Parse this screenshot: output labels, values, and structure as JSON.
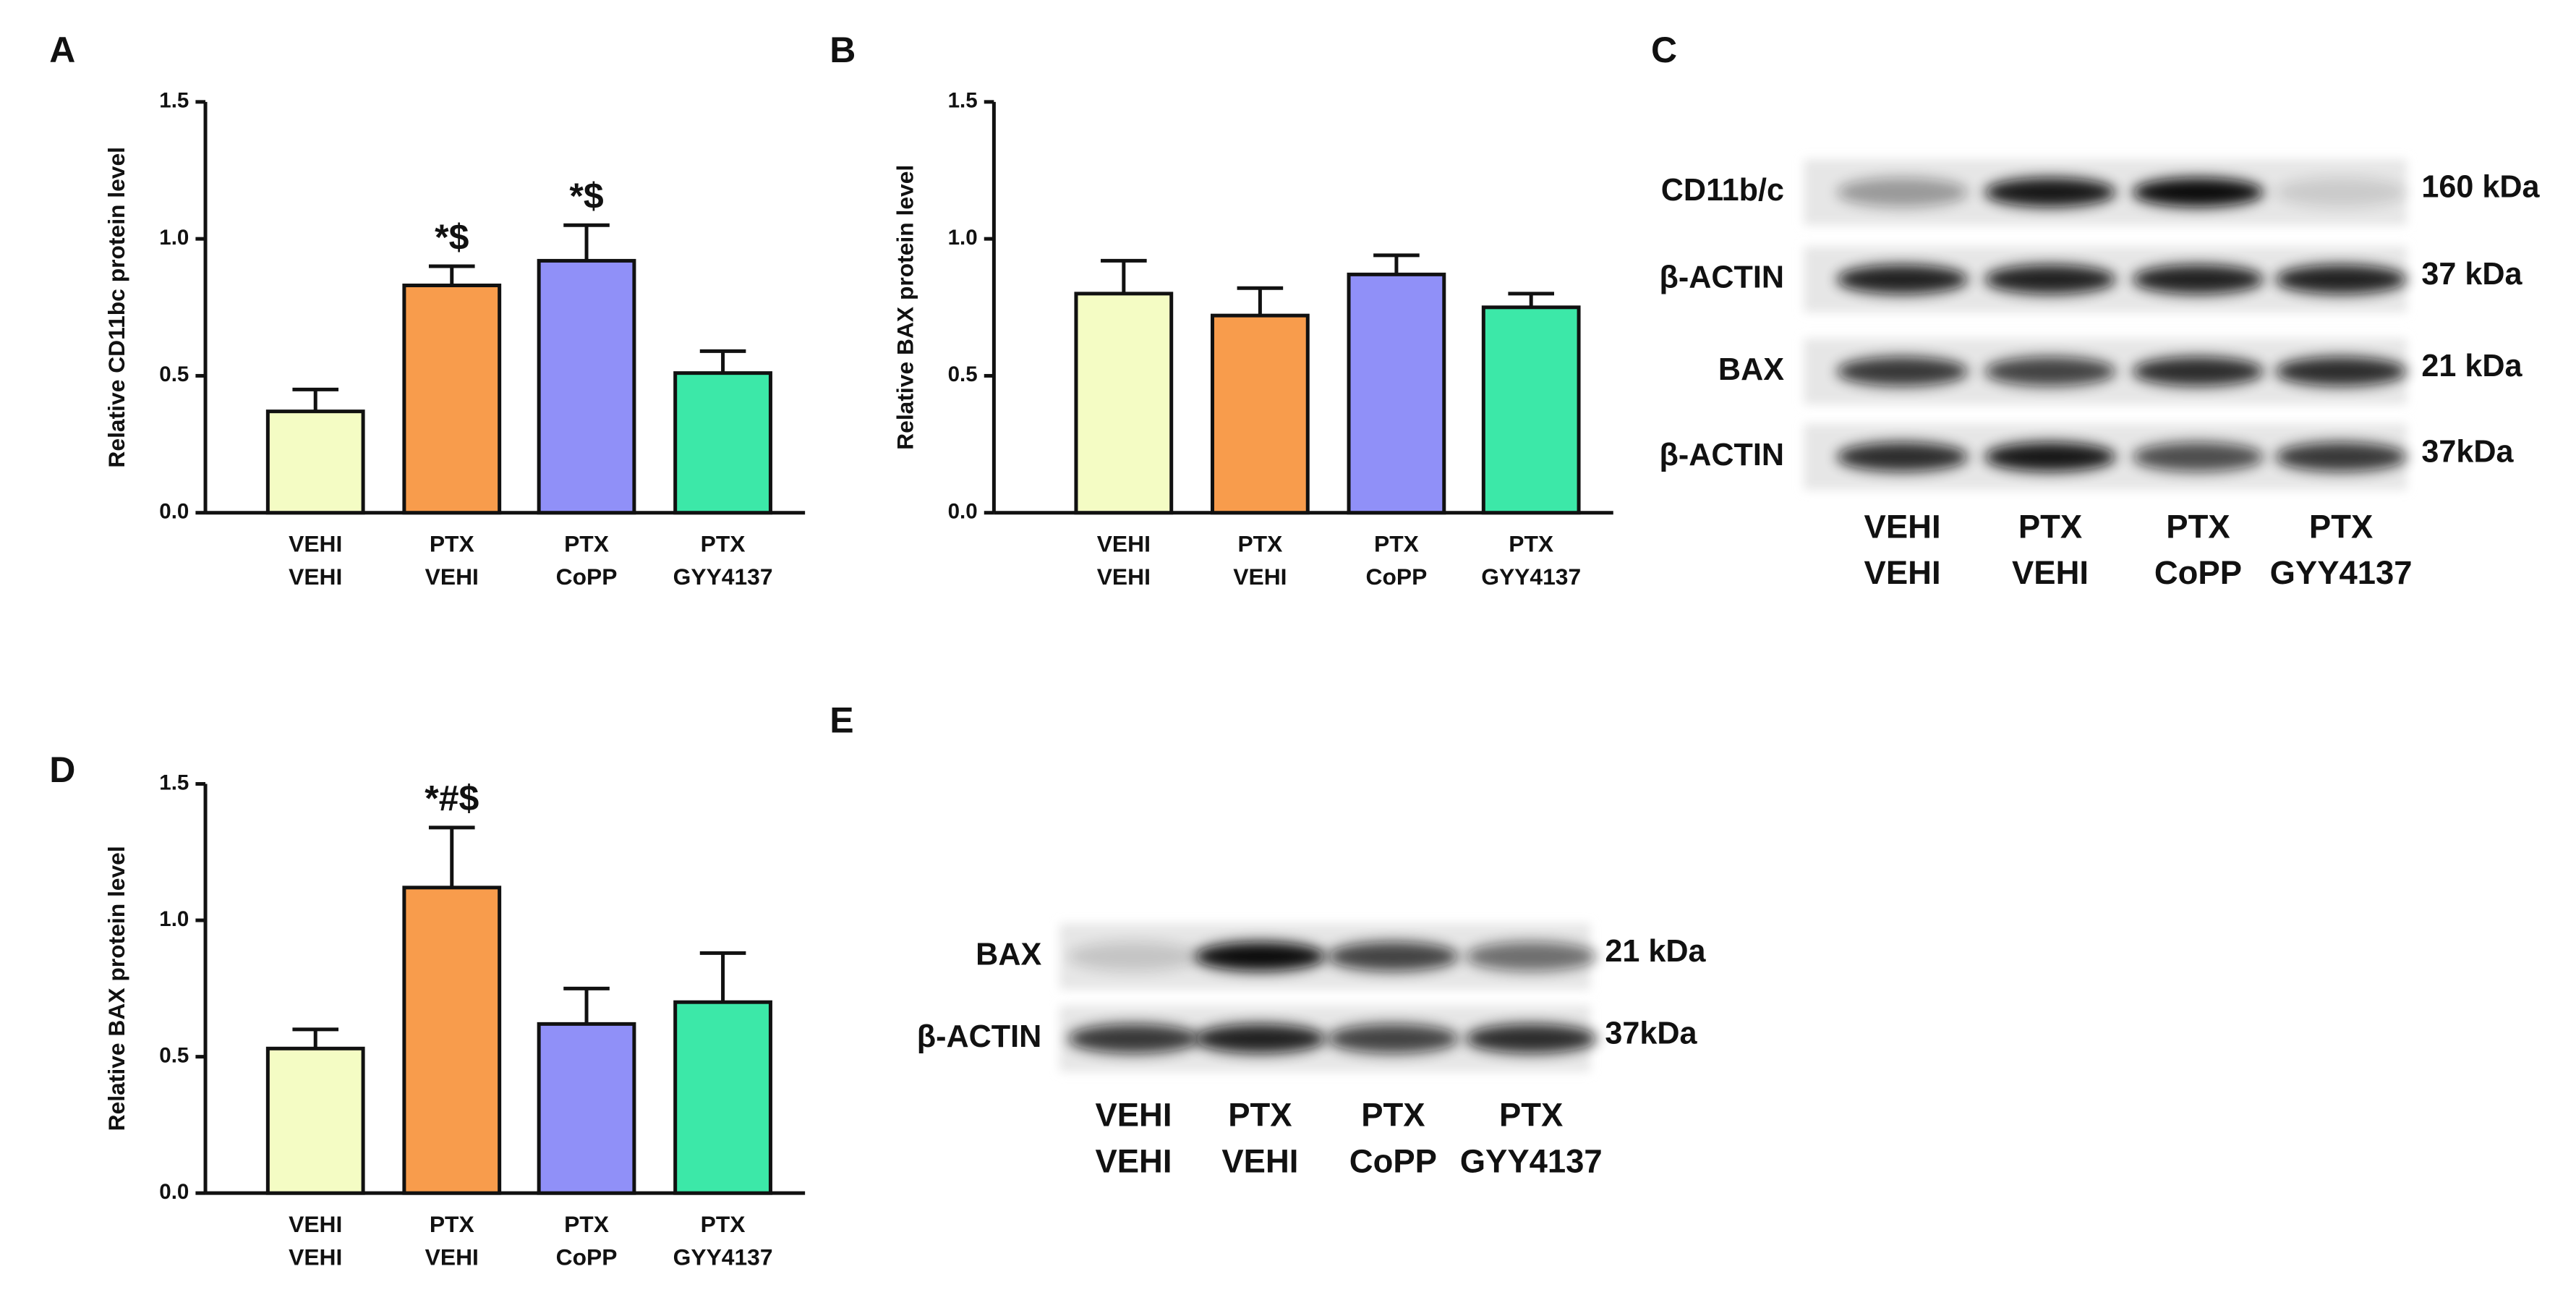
{
  "chart_data": [
    {
      "type": "bar",
      "panel": "A",
      "ylabel": "Relative CD11bc protein level",
      "categories": [
        [
          "VEHI",
          "VEHI"
        ],
        [
          "PTX",
          "VEHI"
        ],
        [
          "PTX",
          "CoPP"
        ],
        [
          "PTX",
          "GYY4137"
        ]
      ],
      "values": [
        0.37,
        0.83,
        0.92,
        0.51
      ],
      "errors": [
        0.08,
        0.07,
        0.13,
        0.08
      ],
      "annotations": [
        null,
        "*$",
        "*$",
        null
      ],
      "colors": [
        "#f4fcc4",
        "#f89c4c",
        "#9090f8",
        "#3ce8a8"
      ],
      "ylim": [
        0,
        1.5
      ],
      "yticks": [
        {
          "value": 0,
          "label": "0.0"
        },
        0.5,
        {
          "value": 1,
          "label": "1.0"
        },
        1.5
      ]
    },
    {
      "type": "bar",
      "panel": "B",
      "ylabel": "Relative BAX protein level",
      "categories": [
        [
          "VEHI",
          "VEHI"
        ],
        [
          "PTX",
          "VEHI"
        ],
        [
          "PTX",
          "CoPP"
        ],
        [
          "PTX",
          "GYY4137"
        ]
      ],
      "values": [
        0.8,
        0.72,
        0.87,
        0.75
      ],
      "errors": [
        0.12,
        0.1,
        0.07,
        0.05
      ],
      "colors": [
        "#f4fcc4",
        "#f89c4c",
        "#9090f8",
        "#3ce8a8"
      ],
      "ylim": [
        0,
        1.5
      ],
      "yticks": [
        {
          "value": 0,
          "label": "0.0"
        },
        0.5,
        {
          "value": 1,
          "label": "1.0"
        },
        1.5
      ]
    },
    {
      "type": "bar",
      "panel": "D",
      "ylabel": "Relative BAX protein level",
      "categories": [
        [
          "VEHI",
          "VEHI"
        ],
        [
          "PTX",
          "VEHI"
        ],
        [
          "PTX",
          "CoPP"
        ],
        [
          "PTX",
          "GYY4137"
        ]
      ],
      "values": [
        0.53,
        1.12,
        0.62,
        0.7
      ],
      "errors": [
        0.07,
        0.22,
        0.13,
        0.18
      ],
      "annotations": [
        null,
        "*#$",
        null,
        null
      ],
      "colors": [
        "#f4fcc4",
        "#f89c4c",
        "#9090f8",
        "#3ce8a8"
      ],
      "ylim": [
        0,
        1.5
      ],
      "yticks": [
        {
          "value": 0,
          "label": "0.0"
        },
        0.5,
        {
          "value": 1,
          "label": "1.0"
        },
        1.5
      ]
    }
  ],
  "blots": [
    {
      "panel": "C",
      "rows": [
        {
          "label": "CD11b/c",
          "size": "160 kDa"
        },
        {
          "label": "β-ACTIN",
          "size": "37 kDa"
        },
        {
          "label": "BAX",
          "size": "21 kDa"
        },
        {
          "label": "β-ACTIN",
          "size": "37kDa"
        }
      ],
      "lanes": [
        [
          "VEHI",
          "VEHI"
        ],
        [
          "PTX",
          "VEHI"
        ],
        [
          "PTX",
          "CoPP"
        ],
        [
          "PTX",
          "GYY4137"
        ]
      ]
    },
    {
      "panel": "E",
      "rows": [
        {
          "label": "BAX",
          "size": "21 kDa"
        },
        {
          "label": "β-ACTIN",
          "size": "37kDa"
        }
      ],
      "lanes": [
        [
          "VEHI",
          "VEHI"
        ],
        [
          "PTX",
          "VEHI"
        ],
        [
          "PTX",
          "CoPP"
        ],
        [
          "PTX",
          "GYY4137"
        ]
      ]
    }
  ]
}
